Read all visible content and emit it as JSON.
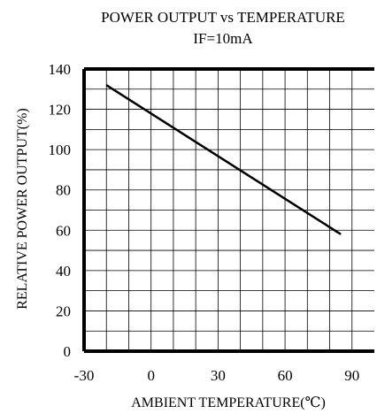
{
  "chart_data": {
    "type": "line",
    "title": "POWER OUTPUT vs TEMPERATURE",
    "subtitle": "IF=10mA",
    "xlabel": "AMBIENT TEMPERATURE(℃)",
    "ylabel": "RELATIVE POWER OUTPUT(%)",
    "xlim": [
      -30,
      100
    ],
    "ylim": [
      0,
      140
    ],
    "x_ticks": [
      -30,
      0,
      30,
      60,
      90
    ],
    "y_ticks": [
      0,
      20,
      40,
      60,
      80,
      100,
      120,
      140
    ],
    "x_tick_labels": [
      "-30",
      "0",
      "30",
      "60",
      "90"
    ],
    "y_tick_labels": [
      "0",
      "20",
      "40",
      "60",
      "80",
      "100",
      "120",
      "140"
    ],
    "grid": true,
    "series": [
      {
        "x": [
          -20,
          85
        ],
        "y": [
          132,
          58
        ]
      }
    ]
  }
}
